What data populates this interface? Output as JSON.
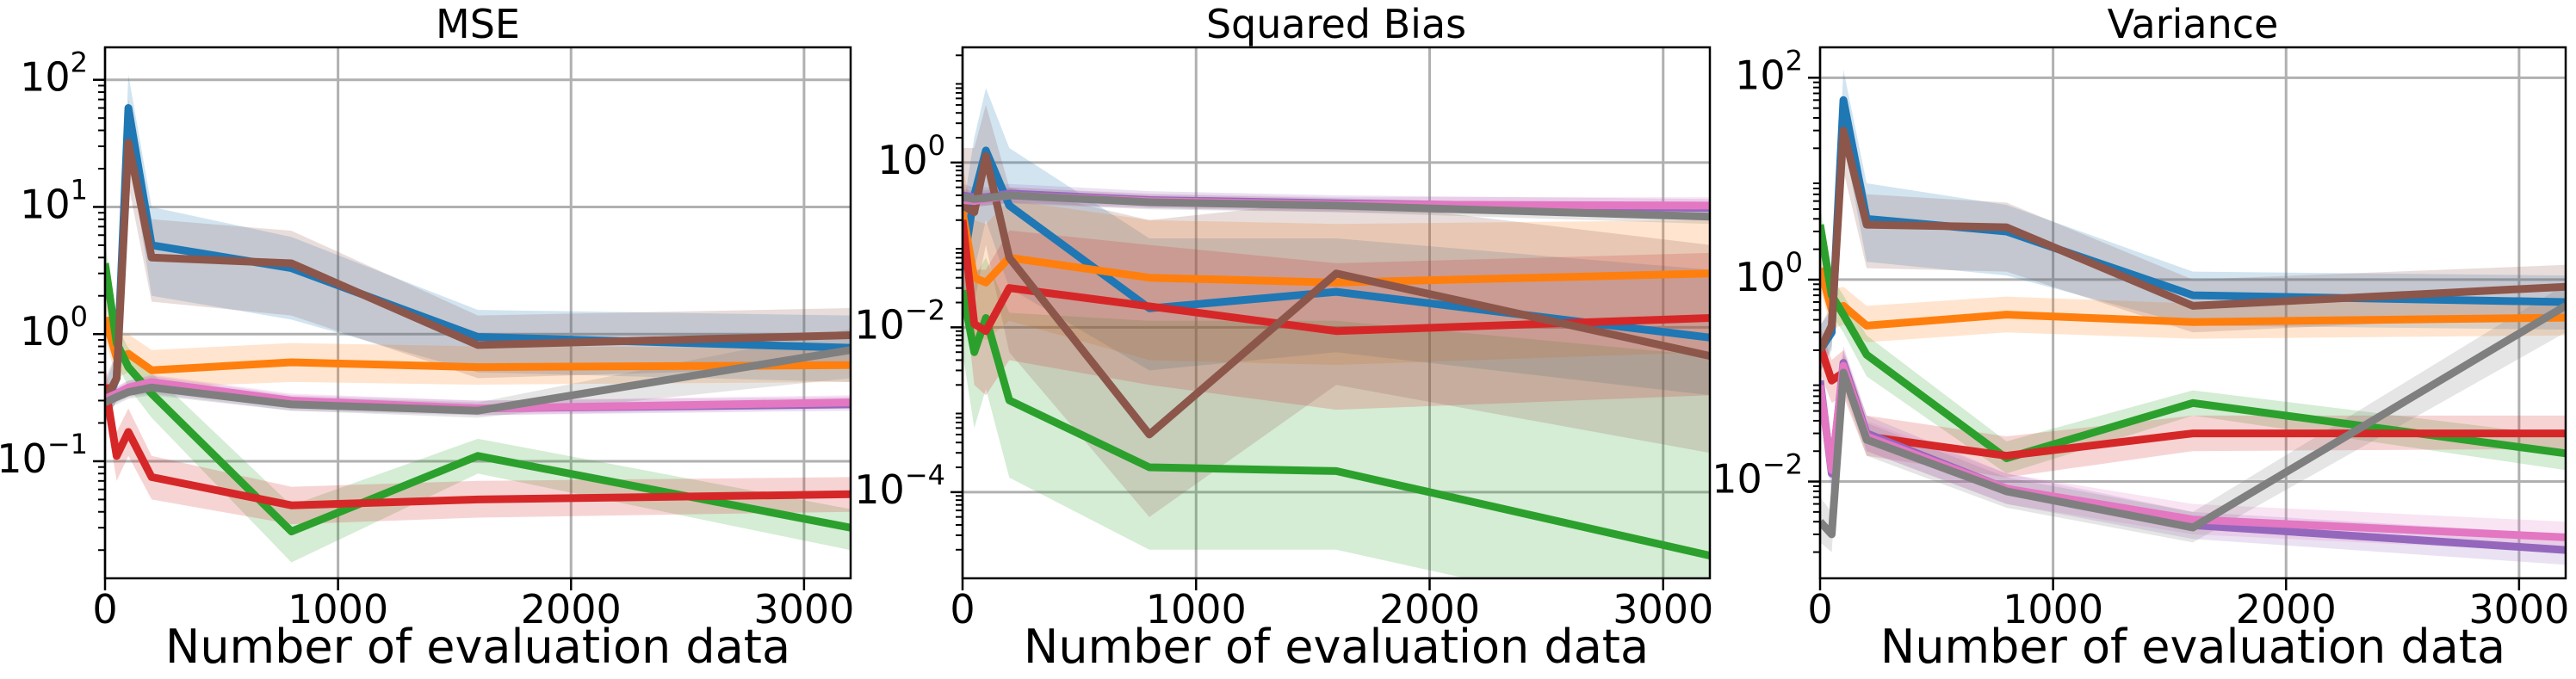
{
  "colors": {
    "blue": "#1f77b4",
    "orange": "#ff7f0e",
    "green": "#2ca02c",
    "red": "#d62728",
    "purple": "#9467bd",
    "brown": "#8c564b",
    "pink": "#e377c2",
    "gray": "#7f7f7f"
  },
  "chart_data": [
    {
      "type": "line",
      "title": "MSE",
      "xlabel": "Number of evaluation data",
      "ylabel": "",
      "yscale": "log",
      "xlim": [
        0,
        3200
      ],
      "ylim": [
        0.012,
        180
      ],
      "grid": true,
      "x": [
        0,
        50,
        100,
        200,
        800,
        1600,
        3200
      ],
      "xticks": [
        0,
        1000,
        2000,
        3000
      ],
      "xtick_labels": [
        "0",
        "1000",
        "2000",
        "3000"
      ],
      "yticks": [
        0.1,
        1,
        10,
        100
      ],
      "ytick_labels": [
        "10^{-1}",
        "10^{0}",
        "10^{1}",
        "10^{2}"
      ],
      "series": [
        {
          "color_key": "blue",
          "values": [
            0.28,
            0.45,
            60,
            5,
            3.3,
            0.95,
            0.78
          ],
          "lower": [
            0.2,
            0.3,
            30,
            2.0,
            1.3,
            0.5,
            0.42
          ],
          "upper": [
            0.4,
            0.7,
            110,
            10,
            5.8,
            1.55,
            1.4
          ]
        },
        {
          "color_key": "orange",
          "values": [
            1.35,
            0.65,
            0.7,
            0.52,
            0.6,
            0.55,
            0.57
          ],
          "lower": [
            0.9,
            0.45,
            0.5,
            0.38,
            0.42,
            0.4,
            0.42
          ],
          "upper": [
            1.9,
            0.95,
            1.0,
            0.75,
            0.85,
            0.8,
            0.78
          ]
        },
        {
          "color_key": "green",
          "values": [
            3.6,
            0.85,
            0.55,
            0.34,
            0.028,
            0.11,
            0.03
          ],
          "lower": [
            2.2,
            0.6,
            0.38,
            0.22,
            0.016,
            0.08,
            0.02
          ],
          "upper": [
            5.5,
            1.15,
            0.78,
            0.5,
            0.045,
            0.15,
            0.042
          ]
        },
        {
          "color_key": "red",
          "values": [
            0.4,
            0.11,
            0.17,
            0.075,
            0.045,
            0.05,
            0.055
          ],
          "lower": [
            0.25,
            0.07,
            0.11,
            0.05,
            0.032,
            0.036,
            0.04
          ],
          "upper": [
            0.6,
            0.17,
            0.26,
            0.11,
            0.063,
            0.07,
            0.075
          ]
        },
        {
          "color_key": "purple",
          "values": [
            0.3,
            0.33,
            0.37,
            0.4,
            0.29,
            0.26,
            0.28
          ],
          "lower": [
            0.26,
            0.29,
            0.32,
            0.34,
            0.25,
            0.23,
            0.25
          ],
          "upper": [
            0.35,
            0.38,
            0.43,
            0.47,
            0.33,
            0.3,
            0.32
          ]
        },
        {
          "color_key": "brown",
          "values": [
            0.3,
            0.45,
            32,
            4,
            3.6,
            0.82,
            0.98
          ],
          "lower": [
            0.2,
            0.3,
            15,
            1.8,
            1.4,
            0.45,
            0.55
          ],
          "upper": [
            0.45,
            0.7,
            70,
            8,
            6.5,
            1.4,
            1.6
          ]
        },
        {
          "color_key": "pink",
          "values": [
            0.31,
            0.34,
            0.38,
            0.42,
            0.3,
            0.26,
            0.29
          ],
          "lower": [
            0.28,
            0.3,
            0.34,
            0.37,
            0.27,
            0.23,
            0.26
          ],
          "upper": [
            0.35,
            0.39,
            0.43,
            0.48,
            0.34,
            0.3,
            0.33
          ]
        },
        {
          "color_key": "gray",
          "values": [
            0.29,
            0.32,
            0.35,
            0.38,
            0.28,
            0.25,
            0.75
          ],
          "lower": [
            0.25,
            0.28,
            0.31,
            0.33,
            0.25,
            0.22,
            0.45
          ],
          "upper": [
            0.34,
            0.37,
            0.4,
            0.44,
            0.32,
            0.29,
            1.1
          ]
        }
      ]
    },
    {
      "type": "line",
      "title": "Squared Bias",
      "xlabel": "Number of evaluation data",
      "ylabel": "",
      "yscale": "log",
      "xlim": [
        0,
        3200
      ],
      "ylim": [
        9e-06,
        25
      ],
      "grid": true,
      "x": [
        0,
        50,
        100,
        200,
        800,
        1600,
        3200
      ],
      "xticks": [
        0,
        1000,
        2000,
        3000
      ],
      "xtick_labels": [
        "0",
        "1000",
        "2000",
        "3000"
      ],
      "yticks": [
        0.0001,
        0.01,
        1
      ],
      "ytick_labels": [
        "10^{-4}",
        "10^{-2}",
        "10^{0}"
      ],
      "series": [
        {
          "color_key": "blue",
          "values": [
            0.05,
            0.4,
            1.4,
            0.3,
            0.017,
            0.027,
            0.0075
          ],
          "lower": [
            0.01,
            0.05,
            0.2,
            0.03,
            0.003,
            0.005,
            0.0015
          ],
          "upper": [
            0.25,
            2.0,
            8,
            1.5,
            0.12,
            0.12,
            0.05
          ]
        },
        {
          "color_key": "orange",
          "values": [
            0.25,
            0.04,
            0.035,
            0.07,
            0.04,
            0.035,
            0.045
          ],
          "lower": [
            0.05,
            0.008,
            0.007,
            0.012,
            0.004,
            0.0035,
            0.005
          ],
          "upper": [
            0.9,
            0.2,
            0.18,
            0.35,
            0.2,
            0.18,
            0.2
          ]
        },
        {
          "color_key": "green",
          "values": [
            0.028,
            0.005,
            0.013,
            0.0013,
            0.0002,
            0.00018,
            1.7e-05
          ],
          "lower": [
            0.005,
            0.0006,
            0.0018,
            0.00015,
            2e-05,
            2e-05,
            2e-06
          ],
          "upper": [
            0.12,
            0.04,
            0.07,
            0.015,
            0.012,
            0.012,
            0.0045
          ]
        },
        {
          "color_key": "red",
          "values": [
            0.2,
            0.011,
            0.009,
            0.03,
            0.018,
            0.009,
            0.013
          ],
          "lower": [
            0.04,
            0.002,
            0.0015,
            0.004,
            0.002,
            0.001,
            0.0015
          ],
          "upper": [
            0.7,
            0.05,
            0.05,
            0.15,
            0.1,
            0.06,
            0.08
          ]
        },
        {
          "color_key": "purple",
          "values": [
            0.4,
            0.38,
            0.38,
            0.42,
            0.35,
            0.32,
            0.28
          ],
          "lower": [
            0.3,
            0.3,
            0.3,
            0.33,
            0.28,
            0.25,
            0.22
          ],
          "upper": [
            0.55,
            0.5,
            0.5,
            0.55,
            0.45,
            0.4,
            0.36
          ]
        },
        {
          "color_key": "brown",
          "values": [
            0.3,
            0.25,
            1.2,
            0.07,
            0.0005,
            0.045,
            0.0045
          ],
          "lower": [
            0.02,
            0.02,
            0.1,
            0.005,
            5e-05,
            0.002,
            0.0003
          ],
          "upper": [
            1.5,
            1.5,
            5,
            0.5,
            0.2,
            0.35,
            0.1
          ]
        },
        {
          "color_key": "pink",
          "values": [
            0.35,
            0.34,
            0.36,
            0.4,
            0.34,
            0.31,
            0.3
          ],
          "lower": [
            0.28,
            0.28,
            0.3,
            0.32,
            0.28,
            0.26,
            0.25
          ],
          "upper": [
            0.45,
            0.42,
            0.44,
            0.5,
            0.42,
            0.38,
            0.38
          ]
        },
        {
          "color_key": "gray",
          "values": [
            0.38,
            0.36,
            0.37,
            0.4,
            0.33,
            0.3,
            0.22
          ],
          "lower": [
            0.3,
            0.29,
            0.3,
            0.32,
            0.27,
            0.25,
            0.18
          ],
          "upper": [
            0.48,
            0.45,
            0.46,
            0.5,
            0.41,
            0.37,
            0.28
          ]
        }
      ]
    },
    {
      "type": "line",
      "title": "Variance",
      "xlabel": "Number of evaluation data",
      "ylabel": "",
      "yscale": "log",
      "xlim": [
        0,
        3200
      ],
      "ylim": [
        0.0011,
        200
      ],
      "grid": true,
      "x": [
        0,
        50,
        100,
        200,
        800,
        1600,
        3200
      ],
      "xticks": [
        0,
        1000,
        2000,
        3000
      ],
      "xtick_labels": [
        "0",
        "1000",
        "2000",
        "3000"
      ],
      "yticks": [
        0.01,
        1,
        100
      ],
      "ytick_labels": [
        "10^{-2}",
        "10^{0}",
        "10^{2}"
      ],
      "series": [
        {
          "color_key": "blue",
          "values": [
            0.2,
            0.3,
            60,
            4,
            3,
            0.7,
            0.6
          ],
          "lower": [
            0.12,
            0.2,
            25,
            1.5,
            1.1,
            0.35,
            0.32
          ],
          "upper": [
            0.35,
            0.5,
            120,
            9,
            5.5,
            1.2,
            1.1
          ]
        },
        {
          "color_key": "orange",
          "values": [
            1.3,
            0.5,
            0.55,
            0.35,
            0.45,
            0.38,
            0.42
          ],
          "lower": [
            0.8,
            0.32,
            0.36,
            0.24,
            0.3,
            0.26,
            0.28
          ],
          "upper": [
            2.0,
            0.8,
            0.85,
            0.55,
            0.68,
            0.58,
            0.62
          ]
        },
        {
          "color_key": "green",
          "values": [
            3.5,
            0.7,
            0.45,
            0.18,
            0.017,
            0.06,
            0.019
          ],
          "lower": [
            2.0,
            0.45,
            0.3,
            0.11,
            0.012,
            0.045,
            0.013
          ],
          "upper": [
            5.5,
            1.05,
            0.7,
            0.28,
            0.025,
            0.08,
            0.028
          ]
        },
        {
          "color_key": "red",
          "values": [
            0.22,
            0.1,
            0.12,
            0.028,
            0.018,
            0.03,
            0.03
          ],
          "lower": [
            0.12,
            0.06,
            0.07,
            0.018,
            0.011,
            0.02,
            0.021
          ],
          "upper": [
            0.35,
            0.16,
            0.2,
            0.045,
            0.028,
            0.045,
            0.045
          ]
        },
        {
          "color_key": "purple",
          "values": [
            0.1,
            0.012,
            0.15,
            0.03,
            0.0085,
            0.0037,
            0.0021
          ],
          "lower": [
            0.06,
            0.007,
            0.1,
            0.02,
            0.006,
            0.0027,
            0.0015
          ],
          "upper": [
            0.15,
            0.02,
            0.22,
            0.045,
            0.012,
            0.005,
            0.003
          ]
        },
        {
          "color_key": "brown",
          "values": [
            0.2,
            0.35,
            30,
            3.5,
            3.3,
            0.55,
            0.85
          ],
          "lower": [
            0.12,
            0.22,
            12,
            1.3,
            1.2,
            0.3,
            0.45
          ],
          "upper": [
            0.35,
            0.55,
            60,
            7,
            5.8,
            1.0,
            1.4
          ]
        },
        {
          "color_key": "pink",
          "values": [
            0.09,
            0.013,
            0.14,
            0.028,
            0.0085,
            0.0042,
            0.0028
          ],
          "lower": [
            0.06,
            0.009,
            0.1,
            0.02,
            0.006,
            0.003,
            0.002
          ],
          "upper": [
            0.13,
            0.02,
            0.2,
            0.04,
            0.012,
            0.006,
            0.004
          ]
        },
        {
          "color_key": "gray",
          "values": [
            0.004,
            0.003,
            0.12,
            0.026,
            0.008,
            0.0035,
            0.55
          ],
          "lower": [
            0.0025,
            0.002,
            0.08,
            0.018,
            0.0055,
            0.0025,
            0.3
          ],
          "upper": [
            0.007,
            0.005,
            0.18,
            0.038,
            0.011,
            0.005,
            0.9
          ]
        }
      ]
    }
  ]
}
